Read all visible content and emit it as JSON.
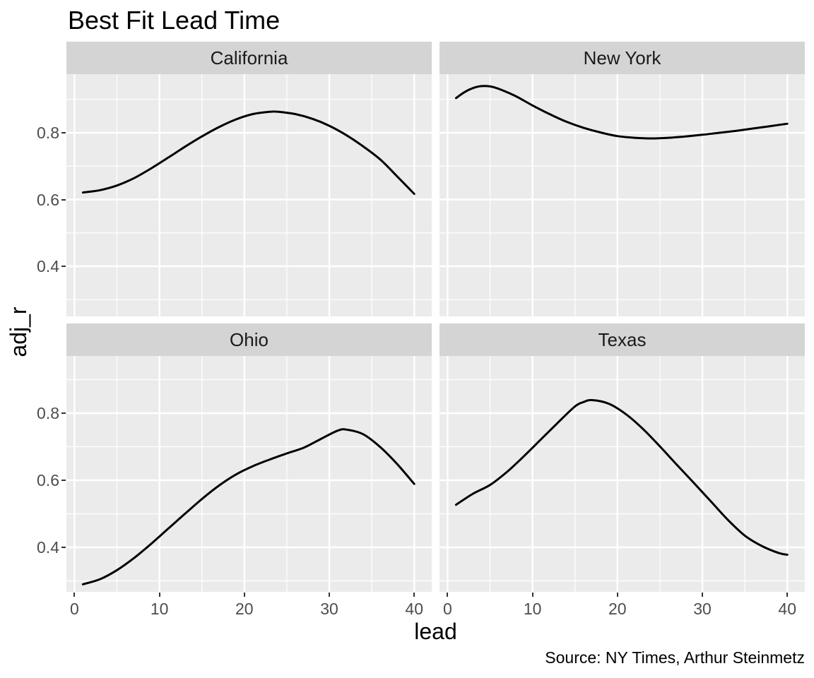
{
  "title": "Best Fit Lead Time",
  "caption": "Source: NY Times, Arthur Steinmetz",
  "x_axis": {
    "label": "lead",
    "ticks": [
      0,
      10,
      20,
      30,
      40
    ],
    "tick_labels": [
      "0",
      "10",
      "20",
      "30",
      "40"
    ],
    "minor_ticks": [
      5,
      15,
      25,
      35
    ],
    "limits": [
      -0.95,
      41.95
    ]
  },
  "y_axis": {
    "label": "adj_r",
    "ticks": [
      0.4,
      0.6,
      0.8
    ],
    "tick_labels": [
      "0.4",
      "0.6",
      "0.8"
    ],
    "minor_ticks": [
      0.3,
      0.5,
      0.7,
      0.9
    ],
    "limits": [
      0.26,
      0.97
    ]
  },
  "colors": {
    "background": "#ffffff",
    "panel_bg": "#ebebeb",
    "strip_bg": "#d4d4d4",
    "grid": "#ffffff",
    "line": "#000000",
    "tick_label": "#4d4d4d",
    "strip_text": "#1a1a1a",
    "tick_mark": "#333333"
  },
  "chart_data": {
    "type": "line",
    "title": "Best Fit Lead Time",
    "xlabel": "lead",
    "ylabel": "adj_r",
    "grid": "on",
    "legend": "none",
    "x_range": [
      1,
      40
    ],
    "facets": [
      {
        "name": "California",
        "x": [
          1,
          3,
          5,
          7,
          9,
          11,
          13,
          15,
          17,
          19,
          21,
          23,
          24,
          26,
          28,
          30,
          32,
          34,
          36,
          38,
          40
        ],
        "y": [
          0.621,
          0.628,
          0.642,
          0.664,
          0.693,
          0.725,
          0.758,
          0.789,
          0.817,
          0.84,
          0.856,
          0.863,
          0.863,
          0.856,
          0.842,
          0.821,
          0.793,
          0.759,
          0.72,
          0.669,
          0.617
        ]
      },
      {
        "name": "New York",
        "x": [
          1,
          2,
          3,
          4,
          5,
          6,
          8,
          10,
          12,
          14,
          16,
          18,
          20,
          22,
          24,
          26,
          28,
          30,
          32,
          34,
          36,
          38,
          40
        ],
        "y": [
          0.904,
          0.922,
          0.934,
          0.94,
          0.939,
          0.932,
          0.91,
          0.882,
          0.856,
          0.833,
          0.815,
          0.801,
          0.79,
          0.785,
          0.783,
          0.785,
          0.789,
          0.794,
          0.8,
          0.806,
          0.813,
          0.82,
          0.827
        ]
      },
      {
        "name": "Ohio",
        "x": [
          1,
          3,
          5,
          7,
          9,
          11,
          13,
          15,
          17,
          19,
          21,
          23,
          25,
          27,
          29,
          31,
          32,
          34,
          36,
          38,
          40
        ],
        "y": [
          0.29,
          0.305,
          0.332,
          0.368,
          0.41,
          0.455,
          0.5,
          0.544,
          0.584,
          0.617,
          0.642,
          0.662,
          0.68,
          0.697,
          0.723,
          0.748,
          0.751,
          0.737,
          0.699,
          0.648,
          0.589
        ]
      },
      {
        "name": "Texas",
        "x": [
          1,
          3,
          5,
          7,
          9,
          11,
          13,
          15,
          16,
          17,
          19,
          21,
          23,
          25,
          27,
          29,
          31,
          33,
          35,
          37,
          39,
          40
        ],
        "y": [
          0.527,
          0.56,
          0.586,
          0.625,
          0.672,
          0.722,
          0.772,
          0.82,
          0.833,
          0.839,
          0.828,
          0.797,
          0.753,
          0.701,
          0.646,
          0.592,
          0.537,
          0.482,
          0.435,
          0.404,
          0.383,
          0.378
        ]
      }
    ]
  }
}
